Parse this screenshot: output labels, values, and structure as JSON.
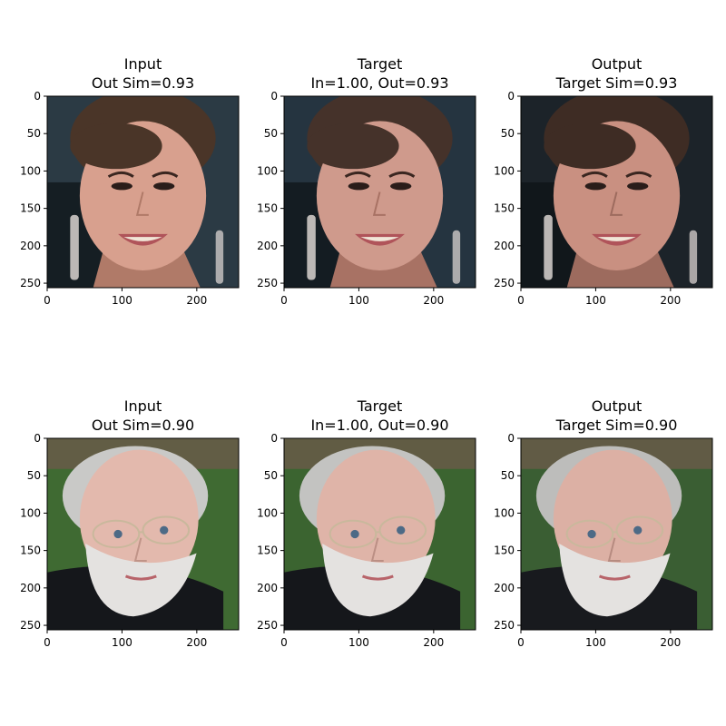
{
  "chart_data": {
    "type": "image-grid",
    "axis": {
      "x_ticks": [
        0,
        100,
        200
      ],
      "y_ticks": [
        0,
        50,
        100,
        150,
        200,
        250
      ],
      "xlim": [
        0,
        256
      ],
      "ylim": [
        256,
        0
      ]
    },
    "rows": [
      {
        "panels": [
          {
            "title1": "Input",
            "title2": "Out Sim=0.93",
            "image": {
              "subject": "young-woman-smiling",
              "bg": "#2b3a44",
              "hair": "#4a3528",
              "skin": "#d8a08e",
              "shade": "#b07a68",
              "clothing": "none",
              "earrings": true
            }
          },
          {
            "title1": "Target",
            "title2": "In=1.00, Out=0.93",
            "image": {
              "subject": "young-woman-smiling",
              "bg": "#253440",
              "hair": "#45322a",
              "skin": "#cf9a8c",
              "shade": "#a87264",
              "clothing": "none",
              "earrings": true
            }
          },
          {
            "title1": "Output",
            "title2": "Target Sim=0.93",
            "image": {
              "subject": "young-woman-smiling",
              "bg": "#1c2329",
              "hair": "#3e2c24",
              "skin": "#c99081",
              "shade": "#9d6b5e",
              "clothing": "none",
              "earrings": true
            }
          }
        ]
      },
      {
        "panels": [
          {
            "title1": "Input",
            "title2": "Out Sim=0.90",
            "image": {
              "subject": "older-man-glasses-beard",
              "bg": "#3f6a32",
              "hair": "#c9c9c7",
              "skin": "#e3b9ad",
              "shade": "#c09488",
              "clothing": "#15171b",
              "earrings": false
            }
          },
          {
            "title1": "Target",
            "title2": "In=1.00, Out=0.90",
            "image": {
              "subject": "older-man-glasses-beard",
              "bg": "#3b6430",
              "hair": "#c3c3c1",
              "skin": "#dfb4a8",
              "shade": "#bb8f84",
              "clothing": "#15171b",
              "earrings": false
            }
          },
          {
            "title1": "Output",
            "title2": "Target Sim=0.90",
            "image": {
              "subject": "older-man-glasses-beard",
              "bg": "#3a5e33",
              "hair": "#bdbdbb",
              "skin": "#dcb0a4",
              "shade": "#b68b80",
              "clothing": "#181a1e",
              "earrings": false
            }
          }
        ]
      }
    ]
  }
}
